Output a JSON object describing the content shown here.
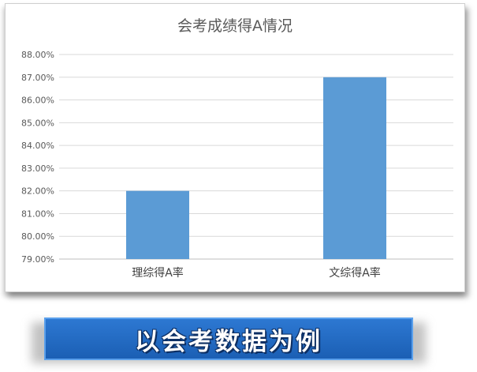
{
  "chart_data": {
    "type": "bar",
    "title": "会考成绩得A情况",
    "categories": [
      "理综得A率",
      "文综得A率"
    ],
    "values": [
      82.0,
      87.0
    ],
    "ylim": [
      79.0,
      88.0
    ],
    "yticks": [
      "88.00%",
      "87.00%",
      "86.00%",
      "85.00%",
      "84.00%",
      "83.00%",
      "82.00%",
      "81.00%",
      "80.00%",
      "79.00%"
    ],
    "xlabel": "",
    "ylabel": "",
    "grid": true,
    "bar_color": "#5b9bd5"
  },
  "banner": {
    "text": "以会考数据为例",
    "color": "#2469c2"
  }
}
